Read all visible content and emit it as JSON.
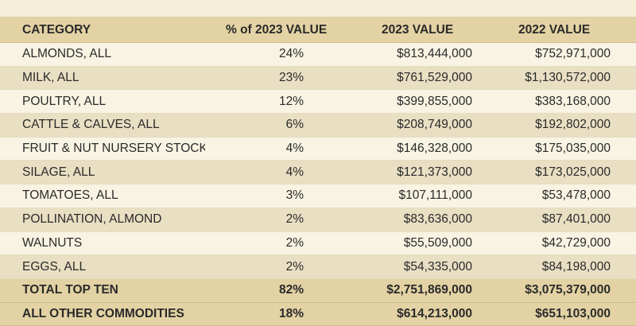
{
  "table": {
    "headers": {
      "category": "CATEGORY",
      "pct_2023": "% of 2023 VALUE",
      "value_2023": "2023 VALUE",
      "value_2022": "2022 VALUE"
    },
    "rows": [
      {
        "category": "ALMONDS, ALL",
        "pct_2023": "24%",
        "value_2023": "$813,444,000",
        "value_2022": "$752,971,000"
      },
      {
        "category": "MILK, ALL",
        "pct_2023": "23%",
        "value_2023": "$761,529,000",
        "value_2022": "$1,130,572,000"
      },
      {
        "category": "POULTRY, ALL",
        "pct_2023": "12%",
        "value_2023": "$399,855,000",
        "value_2022": "$383,168,000"
      },
      {
        "category": "CATTLE & CALVES, ALL",
        "pct_2023": "6%",
        "value_2023": "$208,749,000",
        "value_2022": "$192,802,000"
      },
      {
        "category": "FRUIT & NUT NURSERY STOCK",
        "pct_2023": "4%",
        "value_2023": "$146,328,000",
        "value_2022": "$175,035,000"
      },
      {
        "category": "SILAGE, ALL",
        "pct_2023": "4%",
        "value_2023": "$121,373,000",
        "value_2022": "$173,025,000"
      },
      {
        "category": "TOMATOES, ALL",
        "pct_2023": "3%",
        "value_2023": "$107,111,000",
        "value_2022": "$53,478,000"
      },
      {
        "category": "POLLINATION, ALMOND",
        "pct_2023": "2%",
        "value_2023": "$83,636,000",
        "value_2022": "$87,401,000"
      },
      {
        "category": "WALNUTS",
        "pct_2023": "2%",
        "value_2023": "$55,509,000",
        "value_2022": "$42,729,000"
      },
      {
        "category": "EGGS, ALL",
        "pct_2023": "2%",
        "value_2023": "$54,335,000",
        "value_2022": "$84,198,000"
      }
    ],
    "totals": [
      {
        "category": "TOTAL TOP TEN",
        "pct_2023": "82%",
        "value_2023": "$2,751,869,000",
        "value_2022": "$3,075,379,000"
      },
      {
        "category": "ALL OTHER COMMODITIES",
        "pct_2023": "18%",
        "value_2023": "$614,213,000",
        "value_2022": "$651,103,000"
      }
    ]
  }
}
